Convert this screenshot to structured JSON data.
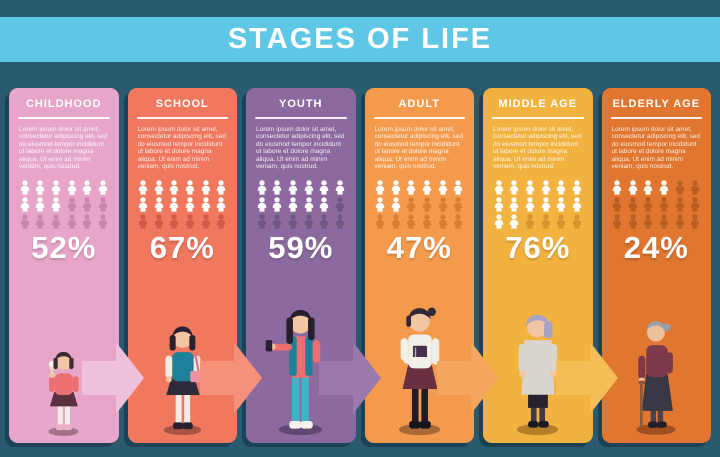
{
  "title": "STAGES OF LIFE",
  "colors": {
    "background": "#2a5a6d",
    "banner": "#5ec7e6",
    "card_shadow": "#1b4255",
    "text": "#ffffff"
  },
  "pictogram": {
    "total_icons": 18,
    "per_row": 6,
    "filled_color": "#ffffff"
  },
  "stages": [
    {
      "label": "CHILDHOOD",
      "percent": 52,
      "percent_label": "52%",
      "description": "Lorem ipsum dolor sit amet, consectetur adipiscing elit, sed do eiusmod tempor incididunt ut labore et dolore magna aliqua. Ut enim ad minim veniam, quis nostrud.",
      "figure": "childhood-girl",
      "colors": {
        "card": "#e7a6c9",
        "icon_dim": "#c886ae",
        "arrow": "#eec0da"
      }
    },
    {
      "label": "SCHOOL",
      "percent": 67,
      "percent_label": "67%",
      "description": "Lorem ipsum dolor sit amet, consectetur adipiscing elit, sed do eiusmod tempor incididunt ut labore et dolore magna aliqua. Ut enim ad minim veniam, quis nostrud.",
      "figure": "school-girl",
      "colors": {
        "card": "#f0785f",
        "icon_dim": "#cf5a46",
        "arrow": "#f5907b"
      }
    },
    {
      "label": "YOUTH",
      "percent": 59,
      "percent_label": "59%",
      "description": "Lorem ipsum dolor sit amet, consectetur adipiscing elit, sed do eiusmod tempor incididunt ut labore et dolore magna aliqua. Ut enim ad minim veniam, quis nostrud.",
      "figure": "youth-woman",
      "colors": {
        "card": "#8c6a9f",
        "icon_dim": "#715480",
        "arrow": "#9b79ad"
      }
    },
    {
      "label": "ADULT",
      "percent": 47,
      "percent_label": "47%",
      "description": "Lorem ipsum dolor sit amet, consectetur adipiscing elit, sed do eiusmod tempor incididunt ut labore et dolore magna aliqua. Ut enim ad minim veniam, quis nostrud.",
      "figure": "adult-woman",
      "colors": {
        "card": "#f49a4d",
        "icon_dim": "#d67e33",
        "arrow": "#f6a75f"
      }
    },
    {
      "label": "MIDDLE AGE",
      "percent": 76,
      "percent_label": "76%",
      "description": "Lorem ipsum dolor sit amet, consectetur adipiscing elit, sed do eiusmod tempor incididunt ut labore et dolore magna aliqua. Ut enim ad minim veniam, quis nostrud.",
      "figure": "middleage-woman",
      "colors": {
        "card": "#f2b23f",
        "icon_dim": "#d3942c",
        "arrow": "#f4bd55"
      }
    },
    {
      "label": "ELDERLY AGE",
      "percent": 24,
      "percent_label": "24%",
      "description": "Lorem ipsum dolor sit amet, consectetur adipiscing elit, sed do eiusmod tempor incididunt ut labore et dolore magna aliqua. Ut enim ad minim veniam, quis nostrud.",
      "figure": "elderly-woman",
      "colors": {
        "card": "#e0762f",
        "icon_dim": "#ba5f22",
        "arrow": null
      }
    }
  ],
  "chart_data": {
    "type": "bar",
    "title": "STAGES OF LIFE",
    "categories": [
      "CHILDHOOD",
      "SCHOOL",
      "YOUTH",
      "ADULT",
      "MIDDLE AGE",
      "ELDERLY AGE"
    ],
    "values": [
      52,
      67,
      59,
      47,
      76,
      24
    ],
    "unit": "%",
    "ylim": [
      0,
      100
    ],
    "legend": "none",
    "representation": "pictograph: grid of 18 person icons per stage, filled white proportionally to the percentage; big percentage label below grid; isometric female character illustration per life stage; arrows between stages"
  }
}
